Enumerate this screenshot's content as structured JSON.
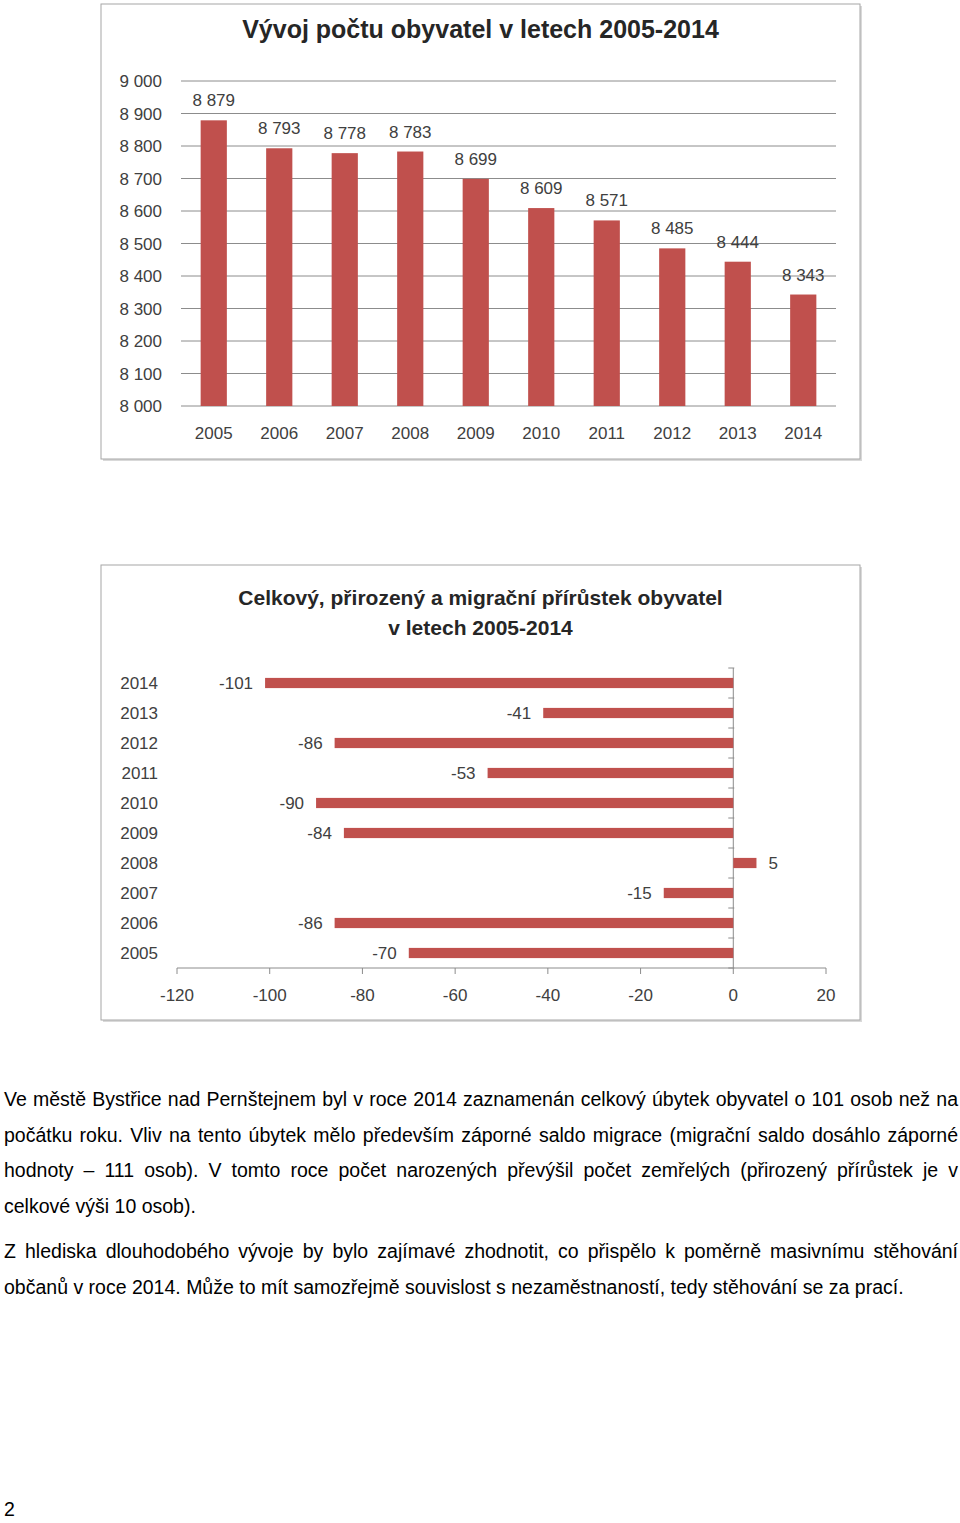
{
  "chart_data": [
    {
      "type": "bar",
      "title": "Vývoj počtu obyvatel  v letech 2005-2014",
      "categories": [
        "2005",
        "2006",
        "2007",
        "2008",
        "2009",
        "2010",
        "2011",
        "2012",
        "2013",
        "2014"
      ],
      "values": [
        8879,
        8793,
        8778,
        8783,
        8699,
        8609,
        8571,
        8485,
        8444,
        8343
      ],
      "value_labels": [
        "8 879",
        "8 793",
        "8 778",
        "8 783",
        "8 699",
        "8 609",
        "8 571",
        "8 485",
        "8 444",
        "8 343"
      ],
      "data_labels": true,
      "color": "#c0504d",
      "ylim": [
        8000,
        9000
      ],
      "yticks": [
        {
          "value": 8000,
          "label": "8 000"
        },
        {
          "value": 8100,
          "label": "8 100"
        },
        {
          "value": 8200,
          "label": "8 200"
        },
        {
          "value": 8300,
          "label": "8 300"
        },
        {
          "value": 8400,
          "label": "8 400"
        },
        {
          "value": 8500,
          "label": "8 500"
        },
        {
          "value": 8600,
          "label": "8 600"
        },
        {
          "value": 8700,
          "label": "8 700"
        },
        {
          "value": 8800,
          "label": "8 800"
        },
        {
          "value": 8900,
          "label": "8 900"
        },
        {
          "value": 9000,
          "label": "9 000"
        }
      ],
      "grid": true
    },
    {
      "type": "bar",
      "orientation": "horizontal",
      "title": "Celkový, přirozený a migrační přírůstek obyvatel\nv letech 2005-2014",
      "categories": [
        "2005",
        "2006",
        "2007",
        "2008",
        "2009",
        "2010",
        "2011",
        "2012",
        "2013",
        "2014"
      ],
      "values": [
        -70,
        -86,
        -15,
        5,
        -84,
        -90,
        -53,
        -86,
        -41,
        -101
      ],
      "data_labels": true,
      "color": "#c0504d",
      "xlim": [
        -120,
        20
      ],
      "xticks": [
        -120,
        -100,
        -80,
        -60,
        -40,
        -20,
        0,
        20
      ],
      "grid": false
    }
  ],
  "text": {
    "paragraphs": [
      "Ve městě Bystřice nad Pernštejnem byl v roce 2014 zaznamenán celkový úbytek obyvatel o 101 osob než na počátku roku. Vliv na tento úbytek mělo především záporné saldo migrace (migrační saldo dosáhlo záporné hodnoty – 111 osob). V tomto roce počet narozených převýšil počet zemřelých (přirozený přírůstek je v celkové výši 10 osob).",
      "Z hlediska dlouhodobého vývoje by bylo zajímavé zhodnotit, co přispělo k poměrně masivnímu stěhování občanů v roce 2014. Může to mít samozřejmě souvislost s nezaměstnaností, tedy stěhování se za prací."
    ],
    "page_number": "2"
  }
}
